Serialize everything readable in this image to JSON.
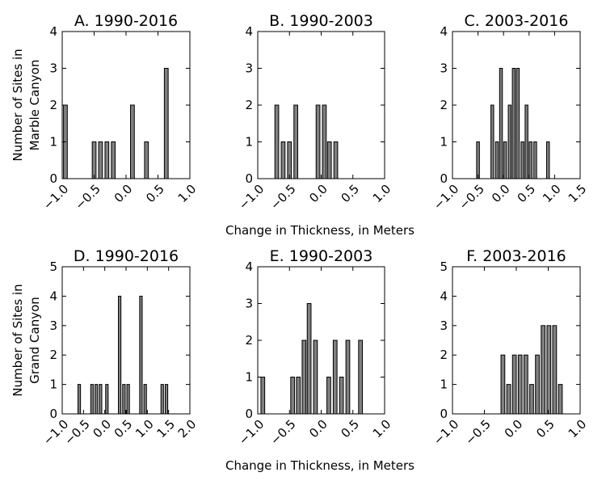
{
  "figure": {
    "xlabel_top": "Change in Thickness, in Meters",
    "xlabel_bottom": "Change in Thickness, in Meters",
    "ylabel_top": [
      "Number of Sites in",
      "Marble Canyon"
    ],
    "ylabel_bottom": [
      "Number of Sites in",
      "Grand Canyon"
    ]
  },
  "colors": {
    "bar": "#808080",
    "edge": "#000000"
  },
  "chart_data": [
    {
      "type": "bar",
      "title": "A. 1990-2016",
      "xlim": [
        -1.0,
        1.0
      ],
      "ylim": [
        0,
        4
      ],
      "xticks": [
        "−1.0",
        "−0.5",
        "0.0",
        "0.5",
        "1.0"
      ],
      "yticks": [
        "0",
        "1",
        "2",
        "3",
        "4"
      ],
      "bar_width": 0.06,
      "x": [
        -0.95,
        -0.5,
        -0.4,
        -0.3,
        -0.2,
        0.1,
        0.32,
        0.63
      ],
      "values": [
        2,
        1,
        1,
        1,
        1,
        2,
        1,
        3
      ]
    },
    {
      "type": "bar",
      "title": "B. 1990-2003",
      "xlim": [
        -1.0,
        1.0
      ],
      "ylim": [
        0,
        4
      ],
      "xticks": [
        "−1.0",
        "−0.5",
        "0.0",
        "0.5",
        "1.0"
      ],
      "yticks": [
        "0",
        "1",
        "2",
        "3",
        "4"
      ],
      "bar_width": 0.06,
      "x": [
        -0.7,
        -0.6,
        -0.5,
        -0.4,
        -0.05,
        0.05,
        0.13,
        0.23
      ],
      "values": [
        2,
        1,
        1,
        2,
        2,
        2,
        1,
        1
      ]
    },
    {
      "type": "bar",
      "title": "C. 2003-2016",
      "xlim": [
        -1.0,
        1.5
      ],
      "ylim": [
        0,
        4
      ],
      "xticks": [
        "−1.0",
        "−0.5",
        "0.0",
        "0.5",
        "1.0",
        "1.5"
      ],
      "yticks": [
        "0",
        "1",
        "2",
        "3",
        "4"
      ],
      "bar_width": 0.055,
      "x": [
        -0.5,
        -0.22,
        -0.13,
        -0.05,
        0.03,
        0.12,
        0.2,
        0.28,
        0.37,
        0.45,
        0.53,
        0.62,
        0.87
      ],
      "values": [
        1,
        2,
        1,
        3,
        1,
        2,
        3,
        3,
        1,
        2,
        1,
        1,
        1
      ]
    },
    {
      "type": "bar",
      "title": "D. 1990-2016",
      "xlim": [
        -1.0,
        2.0
      ],
      "ylim": [
        0,
        5
      ],
      "xticks": [
        "−1.0",
        "−0.5",
        "0.0",
        "0.5",
        "1.0",
        "1.5",
        "2.0"
      ],
      "yticks": [
        "0",
        "1",
        "2",
        "3",
        "4",
        "5"
      ],
      "bar_width": 0.06,
      "x": [
        -0.6,
        -0.3,
        -0.2,
        -0.1,
        0.05,
        0.35,
        0.45,
        0.55,
        0.85,
        0.95,
        1.35,
        1.45
      ],
      "values": [
        1,
        1,
        1,
        1,
        1,
        4,
        1,
        1,
        4,
        1,
        1,
        1
      ]
    },
    {
      "type": "bar",
      "title": "E. 1990-2003",
      "xlim": [
        -1.0,
        1.0
      ],
      "ylim": [
        0,
        4
      ],
      "xticks": [
        "−1.0",
        "−0.5",
        "0.0",
        "0.5",
        "1.0"
      ],
      "yticks": [
        "0",
        "1",
        "2",
        "3",
        "4"
      ],
      "bar_width": 0.06,
      "x": [
        -0.92,
        -0.45,
        -0.36,
        -0.27,
        -0.19,
        -0.09,
        0.12,
        0.22,
        0.32,
        0.42,
        0.62
      ],
      "values": [
        1,
        1,
        1,
        2,
        3,
        2,
        1,
        2,
        1,
        2,
        2
      ]
    },
    {
      "type": "bar",
      "title": "F. 2003-2016",
      "xlim": [
        -1.0,
        1.0
      ],
      "ylim": [
        0,
        5
      ],
      "xticks": [
        "−1.0",
        "−0.5",
        "0.0",
        "0.5",
        "1.0"
      ],
      "yticks": [
        "0",
        "1",
        "2",
        "3",
        "4",
        "5"
      ],
      "bar_width": 0.06,
      "x": [
        -0.21,
        -0.12,
        -0.03,
        0.06,
        0.15,
        0.24,
        0.33,
        0.42,
        0.51,
        0.6,
        0.69
      ],
      "values": [
        2,
        1,
        2,
        2,
        2,
        1,
        2,
        3,
        3,
        3,
        1
      ]
    }
  ]
}
